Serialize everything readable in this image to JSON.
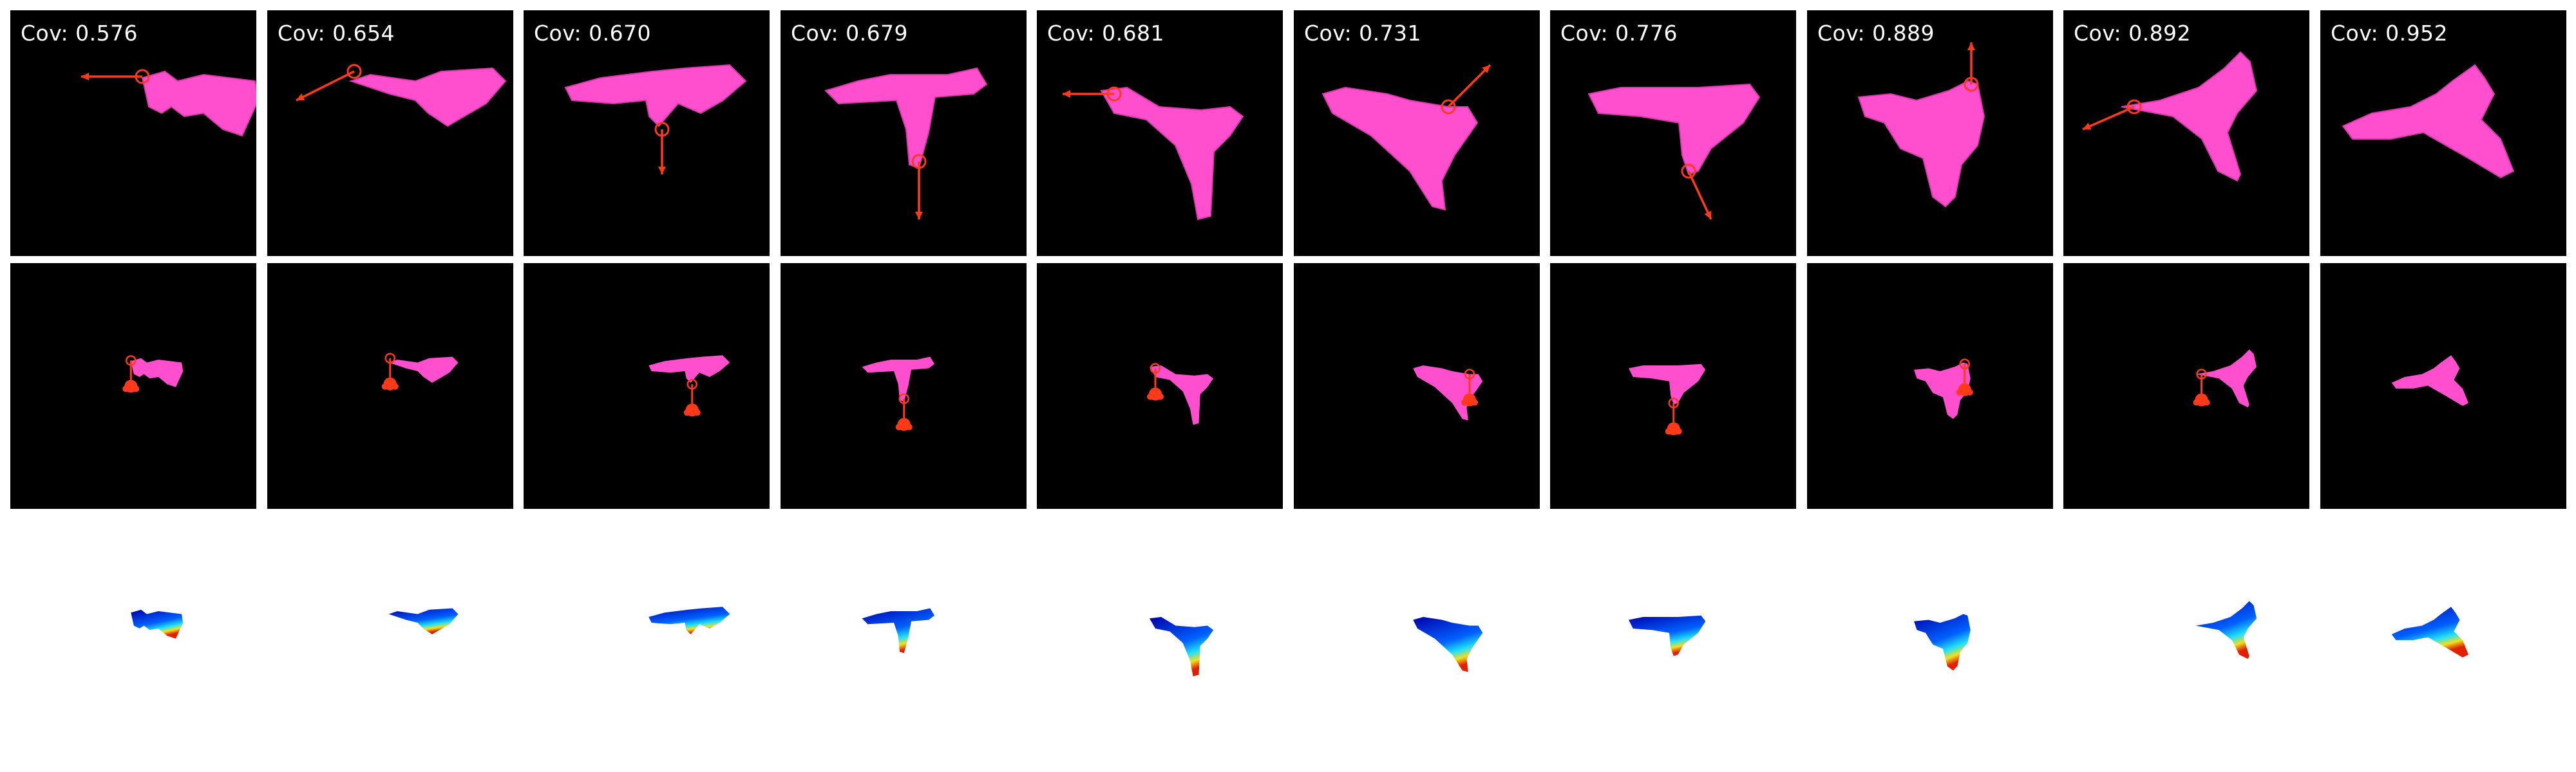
{
  "figure": {
    "coverage_label_prefix": "Cov:",
    "columns": [
      {
        "coverage": "0.576"
      },
      {
        "coverage": "0.654"
      },
      {
        "coverage": "0.670"
      },
      {
        "coverage": "0.679"
      },
      {
        "coverage": "0.681"
      },
      {
        "coverage": "0.731"
      },
      {
        "coverage": "0.776"
      },
      {
        "coverage": "0.889"
      },
      {
        "coverage": "0.892"
      },
      {
        "coverage": "0.952"
      }
    ],
    "colors": {
      "background": "#000000",
      "cloth": "#ff4fcf",
      "arrow": "#ff3a1a",
      "heat_deep": "#0000a8",
      "heat_mid": "#0060ff",
      "heat_cyan": "#20e0ff",
      "heat_yellow": "#f0e020",
      "heat_red": "#e02000"
    }
  }
}
